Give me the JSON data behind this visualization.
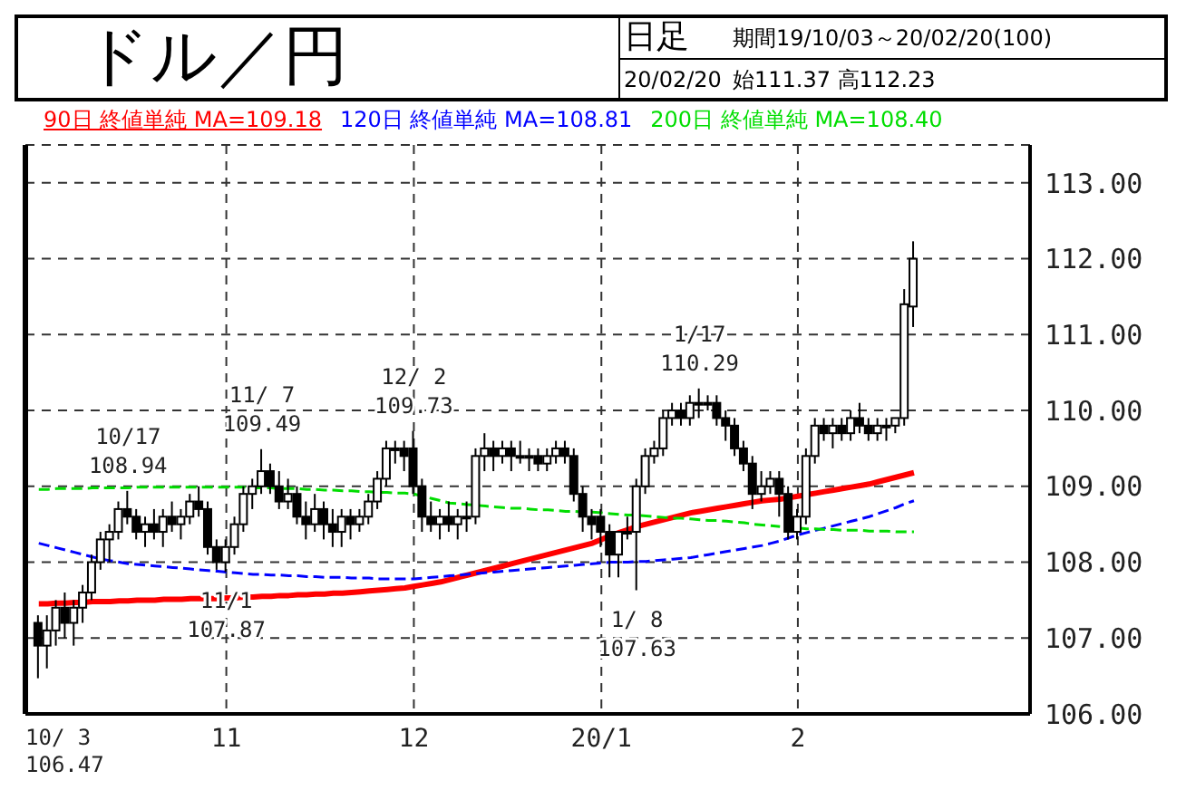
{
  "chart_data": {
    "type": "candlestick",
    "title": "ドル／円",
    "annotations": [
      "日足",
      "期間19/10/03～20/02/20(100)",
      "20/02/20",
      "始111.37 高112.23",
      "10/ 3\n106.47",
      {
        "text": "10/17\n108.94",
        "y": 108.94
      },
      {
        "text": "11/1\n107.87",
        "y": 107.87
      },
      {
        "text": "11/ 7\n109.49",
        "y": 109.49
      },
      {
        "text": "12/ 2\n109.73",
        "y": 109.73
      },
      {
        "text": "1/ 8\n107.63",
        "y": 107.63
      },
      {
        "text": "1/17\n110.29",
        "y": 110.29
      }
    ],
    "categories": [
      null,
      null,
      null,
      null,
      null,
      null,
      null,
      null,
      null,
      null,
      null,
      null,
      null,
      null,
      null,
      null,
      null,
      null,
      null,
      null,
      null,
      "11",
      null,
      null,
      null,
      null,
      null,
      null,
      null,
      null,
      null,
      null,
      null,
      null,
      null,
      null,
      null,
      null,
      null,
      null,
      null,
      null,
      "12",
      null,
      null,
      null,
      null,
      null,
      null,
      null,
      null,
      null,
      null,
      null,
      null,
      null,
      null,
      null,
      null,
      null,
      null,
      null,
      null,
      "20/1",
      null,
      null,
      null,
      null,
      null,
      null,
      null,
      null,
      null,
      null,
      null,
      null,
      null,
      null,
      null,
      null,
      null,
      null,
      null,
      null,
      null,
      "2",
      null,
      null,
      null,
      null,
      null,
      null,
      null,
      null,
      null,
      null,
      null,
      null,
      null
    ],
    "ohlc": [
      [
        107.2,
        107.3,
        106.47,
        106.9
      ],
      [
        106.9,
        107.3,
        106.6,
        107.1
      ],
      [
        107.1,
        107.5,
        106.9,
        107.4
      ],
      [
        107.4,
        107.6,
        107.0,
        107.2
      ],
      [
        107.2,
        107.5,
        106.9,
        107.4
      ],
      [
        107.4,
        107.7,
        107.2,
        107.6
      ],
      [
        107.6,
        108.1,
        107.5,
        108.0
      ],
      [
        108.0,
        108.4,
        107.9,
        108.3
      ],
      [
        108.3,
        108.5,
        108.0,
        108.4
      ],
      [
        108.4,
        108.8,
        108.3,
        108.7
      ],
      [
        108.7,
        108.94,
        108.5,
        108.6
      ],
      [
        108.6,
        108.7,
        108.3,
        108.4
      ],
      [
        108.4,
        108.6,
        108.2,
        108.5
      ],
      [
        108.5,
        108.7,
        108.3,
        108.4
      ],
      [
        108.4,
        108.7,
        108.2,
        108.6
      ],
      [
        108.6,
        108.8,
        108.4,
        108.5
      ],
      [
        108.5,
        108.7,
        108.3,
        108.6
      ],
      [
        108.6,
        108.9,
        108.5,
        108.8
      ],
      [
        108.8,
        109.0,
        108.6,
        108.7
      ],
      [
        108.7,
        108.8,
        108.1,
        108.2
      ],
      [
        108.2,
        108.3,
        107.9,
        108.0
      ],
      [
        108.0,
        108.3,
        107.87,
        108.2
      ],
      [
        108.2,
        108.6,
        108.1,
        108.5
      ],
      [
        108.5,
        109.0,
        108.4,
        108.9
      ],
      [
        108.9,
        109.1,
        108.7,
        109.0
      ],
      [
        109.0,
        109.49,
        108.9,
        109.2
      ],
      [
        109.2,
        109.3,
        108.9,
        109.0
      ],
      [
        109.0,
        109.2,
        108.7,
        108.8
      ],
      [
        108.8,
        109.1,
        108.7,
        108.9
      ],
      [
        108.9,
        109.0,
        108.5,
        108.6
      ],
      [
        108.6,
        108.8,
        108.3,
        108.5
      ],
      [
        108.5,
        108.9,
        108.4,
        108.7
      ],
      [
        108.7,
        108.8,
        108.3,
        108.5
      ],
      [
        108.5,
        108.7,
        108.2,
        108.4
      ],
      [
        108.4,
        108.7,
        108.2,
        108.6
      ],
      [
        108.6,
        108.7,
        108.3,
        108.5
      ],
      [
        108.5,
        108.7,
        108.4,
        108.6
      ],
      [
        108.6,
        108.9,
        108.5,
        108.8
      ],
      [
        108.8,
        109.2,
        108.7,
        109.1
      ],
      [
        109.1,
        109.6,
        109.0,
        109.5
      ],
      [
        109.5,
        109.6,
        109.3,
        109.5
      ],
      [
        109.5,
        109.6,
        109.2,
        109.4
      ],
      [
        109.5,
        109.73,
        108.9,
        109.0
      ],
      [
        109.0,
        109.1,
        108.4,
        108.6
      ],
      [
        108.6,
        108.8,
        108.4,
        108.5
      ],
      [
        108.5,
        108.7,
        108.3,
        108.6
      ],
      [
        108.6,
        108.8,
        108.4,
        108.5
      ],
      [
        108.5,
        108.7,
        108.3,
        108.6
      ],
      [
        108.6,
        108.8,
        108.4,
        108.6
      ],
      [
        108.6,
        109.5,
        108.5,
        109.4
      ],
      [
        109.4,
        109.7,
        109.2,
        109.5
      ],
      [
        109.5,
        109.6,
        109.2,
        109.4
      ],
      [
        109.4,
        109.6,
        109.3,
        109.5
      ],
      [
        109.5,
        109.6,
        109.2,
        109.4
      ],
      [
        109.4,
        109.6,
        109.3,
        109.4
      ],
      [
        109.4,
        109.5,
        109.2,
        109.4
      ],
      [
        109.4,
        109.5,
        109.2,
        109.3
      ],
      [
        109.3,
        109.5,
        109.2,
        109.4
      ],
      [
        109.4,
        109.6,
        109.3,
        109.5
      ],
      [
        109.5,
        109.6,
        109.3,
        109.4
      ],
      [
        109.4,
        109.5,
        108.8,
        108.9
      ],
      [
        108.9,
        109.0,
        108.4,
        108.6
      ],
      [
        108.6,
        108.7,
        108.3,
        108.5
      ],
      [
        108.6,
        108.7,
        108.2,
        108.4
      ],
      [
        108.4,
        108.5,
        107.8,
        108.1
      ],
      [
        108.1,
        108.4,
        107.8,
        108.4
      ],
      [
        108.4,
        108.6,
        108.3,
        108.4
      ],
      [
        108.4,
        109.1,
        107.63,
        109.0
      ],
      [
        109.0,
        109.5,
        108.9,
        109.4
      ],
      [
        109.4,
        109.6,
        109.3,
        109.5
      ],
      [
        109.5,
        110.0,
        109.4,
        109.9
      ],
      [
        109.9,
        110.1,
        109.8,
        110.0
      ],
      [
        110.0,
        110.1,
        109.8,
        109.9
      ],
      [
        109.9,
        110.2,
        109.8,
        110.1
      ],
      [
        110.1,
        110.29,
        109.9,
        110.1
      ],
      [
        110.1,
        110.2,
        110.0,
        110.1
      ],
      [
        110.1,
        110.2,
        109.8,
        109.9
      ],
      [
        109.9,
        110.0,
        109.6,
        109.8
      ],
      [
        109.8,
        109.9,
        109.4,
        109.5
      ],
      [
        109.5,
        109.6,
        109.2,
        109.3
      ],
      [
        109.3,
        109.4,
        108.7,
        108.9
      ],
      [
        108.9,
        109.2,
        108.8,
        109.0
      ],
      [
        109.0,
        109.2,
        108.9,
        109.1
      ],
      [
        109.1,
        109.2,
        108.6,
        108.9
      ],
      [
        108.9,
        109.0,
        108.3,
        108.4
      ],
      [
        108.4,
        108.7,
        108.3,
        108.6
      ],
      [
        108.6,
        109.5,
        108.5,
        109.4
      ],
      [
        109.4,
        109.9,
        109.3,
        109.8
      ],
      [
        109.8,
        109.9,
        109.6,
        109.7
      ],
      [
        109.7,
        109.9,
        109.5,
        109.8
      ],
      [
        109.8,
        109.9,
        109.6,
        109.7
      ],
      [
        109.7,
        110.0,
        109.6,
        109.9
      ],
      [
        109.9,
        110.1,
        109.7,
        109.8
      ],
      [
        109.8,
        109.9,
        109.6,
        109.7
      ],
      [
        109.7,
        109.9,
        109.6,
        109.8
      ],
      [
        109.8,
        109.9,
        109.6,
        109.8
      ],
      [
        109.8,
        109.9,
        109.7,
        109.9
      ],
      [
        109.9,
        111.6,
        109.8,
        111.4
      ],
      [
        111.37,
        112.23,
        111.1,
        112.0
      ]
    ],
    "series": [
      {
        "name": "90日 終値単純 MA=109.18",
        "type": "line",
        "color": "#ff0000",
        "line_style": "solid",
        "values": [
          107.45,
          107.45,
          107.46,
          107.46,
          107.47,
          107.47,
          107.48,
          107.48,
          107.48,
          107.49,
          107.49,
          107.5,
          107.5,
          107.5,
          107.51,
          107.51,
          107.51,
          107.52,
          107.52,
          107.52,
          107.52,
          107.53,
          107.53,
          107.54,
          107.54,
          107.55,
          107.55,
          107.56,
          107.56,
          107.57,
          107.57,
          107.58,
          107.58,
          107.59,
          107.59,
          107.6,
          107.61,
          107.62,
          107.63,
          107.64,
          107.65,
          107.66,
          107.68,
          107.7,
          107.72,
          107.74,
          107.77,
          107.8,
          107.83,
          107.86,
          107.89,
          107.92,
          107.95,
          107.98,
          108.01,
          108.04,
          108.07,
          108.1,
          108.13,
          108.16,
          108.19,
          108.22,
          108.25,
          108.3,
          108.35,
          108.39,
          108.43,
          108.47,
          108.5,
          108.53,
          108.56,
          108.59,
          108.62,
          108.65,
          108.67,
          108.69,
          108.71,
          108.73,
          108.75,
          108.77,
          108.79,
          108.81,
          108.82,
          108.83,
          108.85,
          108.87,
          108.89,
          108.91,
          108.93,
          108.95,
          108.97,
          108.99,
          109.01,
          109.03,
          109.06,
          109.09,
          109.12,
          109.15,
          109.18
        ]
      },
      {
        "name": "120日 終値単純 MA=108.81",
        "type": "line",
        "color": "#0000ff",
        "line_style": "dashed",
        "values": [
          108.25,
          108.22,
          108.19,
          108.16,
          108.13,
          108.1,
          108.07,
          108.04,
          108.02,
          108.0,
          107.98,
          107.97,
          107.96,
          107.95,
          107.94,
          107.93,
          107.92,
          107.91,
          107.9,
          107.89,
          107.88,
          107.87,
          107.86,
          107.85,
          107.84,
          107.84,
          107.83,
          107.83,
          107.82,
          107.82,
          107.81,
          107.81,
          107.8,
          107.8,
          107.8,
          107.79,
          107.79,
          107.79,
          107.78,
          107.78,
          107.78,
          107.78,
          107.78,
          107.79,
          107.8,
          107.81,
          107.82,
          107.83,
          107.84,
          107.85,
          107.86,
          107.87,
          107.88,
          107.89,
          107.9,
          107.91,
          107.92,
          107.93,
          107.94,
          107.95,
          107.96,
          107.97,
          107.98,
          107.99,
          108.0,
          108.0,
          108.0,
          108.01,
          108.01,
          108.02,
          108.03,
          108.04,
          108.05,
          108.06,
          108.08,
          108.1,
          108.12,
          108.14,
          108.16,
          108.18,
          108.2,
          108.22,
          108.25,
          108.28,
          108.32,
          108.36,
          108.39,
          108.42,
          108.45,
          108.48,
          108.51,
          108.54,
          108.57,
          108.6,
          108.64,
          108.68,
          108.72,
          108.77,
          108.81
        ]
      },
      {
        "name": "200日 終値単純 MA=108.40",
        "type": "line",
        "color": "#00dd00",
        "line_style": "dashed",
        "values": [
          108.96,
          108.96,
          108.97,
          108.97,
          108.97,
          108.97,
          108.98,
          108.98,
          108.98,
          108.98,
          108.98,
          108.99,
          108.99,
          108.99,
          108.99,
          108.99,
          108.99,
          108.99,
          108.99,
          108.99,
          108.99,
          108.99,
          108.99,
          108.99,
          108.98,
          108.98,
          108.98,
          108.97,
          108.97,
          108.97,
          108.96,
          108.96,
          108.95,
          108.95,
          108.94,
          108.94,
          108.93,
          108.93,
          108.92,
          108.92,
          108.91,
          108.91,
          108.9,
          108.87,
          108.84,
          108.81,
          108.78,
          108.77,
          108.76,
          108.75,
          108.74,
          108.73,
          108.72,
          108.71,
          108.71,
          108.7,
          108.69,
          108.69,
          108.68,
          108.67,
          108.67,
          108.66,
          108.66,
          108.65,
          108.64,
          108.63,
          108.62,
          108.62,
          108.61,
          108.6,
          108.59,
          108.58,
          108.58,
          108.57,
          108.56,
          108.55,
          108.55,
          108.54,
          108.53,
          108.52,
          108.5,
          108.49,
          108.48,
          108.47,
          null,
          108.45,
          108.44,
          108.44,
          108.43,
          108.43,
          108.42,
          108.42,
          108.42,
          108.41,
          108.41,
          108.41,
          108.4,
          108.4,
          108.4
        ]
      }
    ],
    "ylim": [
      106,
      113.5
    ],
    "yticks": [
      {
        "value": 106,
        "label": "106.00"
      },
      {
        "value": 107,
        "label": "107.00"
      },
      {
        "value": 108,
        "label": "108.00"
      },
      {
        "value": 109,
        "label": "109.00"
      },
      {
        "value": 110,
        "label": "110.00"
      },
      {
        "value": 111,
        "label": "111.00"
      },
      {
        "value": 112,
        "label": "112.00"
      },
      {
        "value": 113,
        "label": "113.00"
      }
    ],
    "grid": true,
    "legend": "top"
  }
}
